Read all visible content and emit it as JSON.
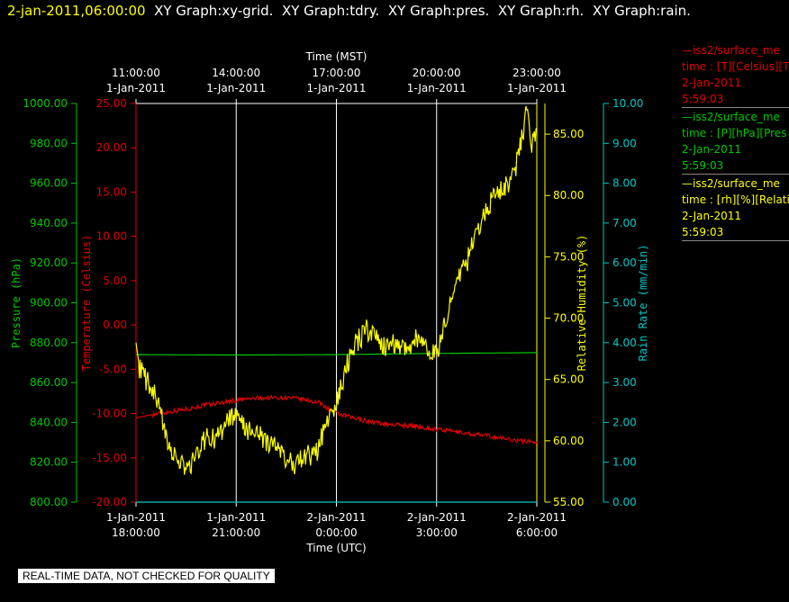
{
  "header": {
    "timestamp": "2-jan-2011,06:00:00",
    "graphs": [
      "XY Graph:xy-grid.",
      "XY Graph:tdry.",
      "XY Graph:pres.",
      "XY Graph:rh.",
      "XY Graph:rain."
    ]
  },
  "colors": {
    "pressure": "#00c800",
    "temperature": "#e00000",
    "humidity": "#ffff00",
    "rain": "#00c8c8",
    "grid": "#ffffff",
    "background": "#000000"
  },
  "legend": [
    {
      "line": "—iss2/surface_me",
      "field": "time : [T][Celsius][T",
      "date": "2-Jan-2011",
      "time": "5:59:03",
      "color": "#e00000"
    },
    {
      "line": "—iss2/surface_me",
      "field": "time : [P][hPa][Pres",
      "date": "2-Jan-2011",
      "time": "5:59:03",
      "color": "#00c800"
    },
    {
      "line": "—iss2/surface_me",
      "field": "time : [rh][%][Relati",
      "date": "2-Jan-2011",
      "time": "5:59:03",
      "color": "#ffff00"
    }
  ],
  "footer": "REAL-TIME DATA, NOT CHECKED FOR QUALITY",
  "chart_data": {
    "type": "line",
    "top_axis": {
      "label": "Time (MST)",
      "ticks": [
        {
          "time": "11:00:00",
          "date": "1-Jan-2011"
        },
        {
          "time": "14:00:00",
          "date": "1-Jan-2011"
        },
        {
          "time": "17:00:00",
          "date": "1-Jan-2011"
        },
        {
          "time": "20:00:00",
          "date": "1-Jan-2011"
        },
        {
          "time": "23:00:00",
          "date": "1-Jan-2011"
        }
      ]
    },
    "bottom_axis": {
      "label": "Time (UTC)",
      "ticks": [
        {
          "date": "1-Jan-2011",
          "time": "18:00:00"
        },
        {
          "date": "1-Jan-2011",
          "time": "21:00:00"
        },
        {
          "date": "2-Jan-2011",
          "time": "0:00:00"
        },
        {
          "date": "2-Jan-2011",
          "time": "3:00:00"
        },
        {
          "date": "2-Jan-2011",
          "time": "6:00:00"
        }
      ]
    },
    "xlim_utc": [
      "2011-01-01T18:00:00",
      "2011-01-02T06:00:00"
    ],
    "grid": true,
    "axes": {
      "pressure": {
        "label": "Pressure (hPa)",
        "ylim": [
          800,
          1000
        ],
        "ticks": [
          "800.00",
          "820.00",
          "840.00",
          "860.00",
          "880.00",
          "900.00",
          "920.00",
          "940.00",
          "960.00",
          "980.00",
          "1000.00"
        ]
      },
      "temperature": {
        "label": "Temperature (Celsius)",
        "ylim": [
          -20,
          25
        ],
        "ticks": [
          "-20.00",
          "-15.00",
          "-10.00",
          "-5.00",
          "0.00",
          "5.00",
          "10.00",
          "15.00",
          "20.00",
          "25.00"
        ]
      },
      "humidity": {
        "label": "Relative Humidity (%)",
        "ylim": [
          55,
          87.5
        ],
        "ticks": [
          "55.00",
          "60.00",
          "65.00",
          "70.00",
          "75.00",
          "80.00",
          "85.00"
        ]
      },
      "rain": {
        "label": "Rain Rate (mm/min)",
        "ylim": [
          0,
          10
        ],
        "ticks": [
          "0.00",
          "1.00",
          "2.00",
          "3.00",
          "4.00",
          "5.00",
          "6.00",
          "7.00",
          "8.00",
          "9.00",
          "10.00"
        ]
      }
    },
    "series": [
      {
        "name": "iss2/surface_me — [T][Celsius]",
        "axis": "temperature",
        "color": "#e00000",
        "x_hours_utc": [
          18.0,
          18.5,
          19.0,
          19.5,
          20.0,
          20.5,
          21.0,
          21.5,
          22.0,
          22.5,
          23.0,
          23.5,
          24.0,
          24.5,
          25.0,
          25.5,
          26.0,
          26.5,
          27.0,
          27.5,
          28.0,
          28.5,
          29.0,
          29.5,
          30.0
        ],
        "values": [
          -10.5,
          -10.1,
          -9.8,
          -9.5,
          -9.1,
          -8.8,
          -8.5,
          -8.3,
          -8.2,
          -8.2,
          -8.4,
          -8.8,
          -10.0,
          -10.5,
          -10.9,
          -11.2,
          -11.3,
          -11.5,
          -11.8,
          -12.0,
          -12.3,
          -12.5,
          -12.8,
          -13.1,
          -13.2
        ]
      },
      {
        "name": "iss2/surface_me — [P][hPa]",
        "axis": "pressure",
        "color": "#00c800",
        "x_hours_utc": [
          18.0,
          21.0,
          24.0,
          27.0,
          30.0
        ],
        "values": [
          874.0,
          873.8,
          874.0,
          874.6,
          875.0
        ]
      },
      {
        "name": "iss2/surface_me — [rh][%]",
        "axis": "humidity",
        "color": "#ffff00",
        "x_hours_utc": [
          18.0,
          18.1,
          18.3,
          18.6,
          18.9,
          19.1,
          19.3,
          19.6,
          19.9,
          20.2,
          20.4,
          20.7,
          21.0,
          21.3,
          21.6,
          21.9,
          22.2,
          22.5,
          22.8,
          23.1,
          23.4,
          23.7,
          24.0,
          24.3,
          24.6,
          24.9,
          25.2,
          25.5,
          25.8,
          26.1,
          26.4,
          26.7,
          27.0,
          27.3,
          27.6,
          27.9,
          28.2,
          28.5,
          28.8,
          29.1,
          29.3,
          29.5,
          29.6,
          29.7,
          29.8,
          29.9,
          30.0
        ],
        "values": [
          68.0,
          66.0,
          65.0,
          63.5,
          60.5,
          59.0,
          58.0,
          57.8,
          59.5,
          60.5,
          60.0,
          61.5,
          62.0,
          61.0,
          60.5,
          60.0,
          59.5,
          58.5,
          58.0,
          58.8,
          59.0,
          61.5,
          63.0,
          66.0,
          68.0,
          69.0,
          68.5,
          67.5,
          68.0,
          67.5,
          68.5,
          67.5,
          67.0,
          70.0,
          73.0,
          74.5,
          77.0,
          79.0,
          80.0,
          81.0,
          81.5,
          84.0,
          85.0,
          87.0,
          84.5,
          84.0,
          85.5
        ]
      },
      {
        "name": "rain",
        "axis": "rain",
        "color": "#00c8c8",
        "x_hours_utc": [
          18.0,
          30.0
        ],
        "values": [
          0.0,
          0.0
        ]
      }
    ]
  }
}
